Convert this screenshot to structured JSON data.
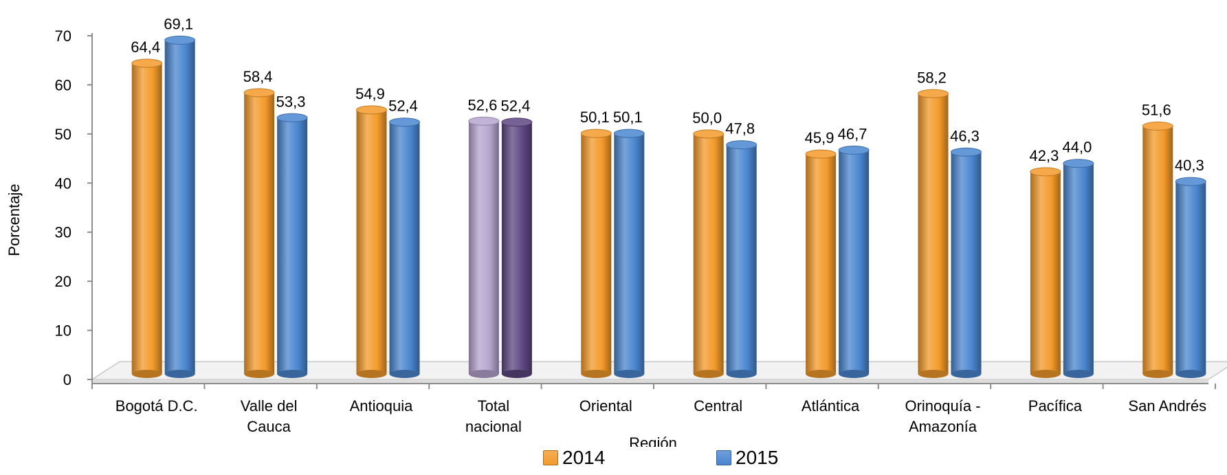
{
  "chart_data": {
    "type": "bar",
    "title": "",
    "xlabel": "Región",
    "ylabel": "Porcentaje",
    "ylim": [
      0,
      70
    ],
    "yticks": [
      "0",
      "10",
      "20",
      "30",
      "40",
      "50",
      "60",
      "70"
    ],
    "categories": [
      [
        "Bogotá D.C."
      ],
      [
        "Valle del",
        "Cauca"
      ],
      [
        "Antioquia"
      ],
      [
        "Total",
        "nacional"
      ],
      [
        "Oriental"
      ],
      [
        "Central"
      ],
      [
        "Atlántica"
      ],
      [
        "Orinoquía -",
        "Amazonía"
      ],
      [
        "Pacífica"
      ],
      [
        "San Andrés"
      ]
    ],
    "series": [
      {
        "name": "2014",
        "color": "#f39a2a",
        "values": [
          64.4,
          58.4,
          54.9,
          52.6,
          50.1,
          50.0,
          45.9,
          58.2,
          42.3,
          51.6
        ],
        "labels": [
          "64,4",
          "58,4",
          "54,9",
          "52,6",
          "50,1",
          "50,0",
          "45,9",
          "58,2",
          "42,3",
          "51,6"
        ]
      },
      {
        "name": "2015",
        "color": "#4a86cf",
        "values": [
          69.1,
          53.3,
          52.4,
          52.4,
          50.1,
          47.8,
          46.7,
          46.3,
          44.0,
          40.3
        ],
        "labels": [
          "69,1",
          "53,3",
          "52,4",
          "52,4",
          "50,1",
          "47,8",
          "46,7",
          "46,3",
          "44,0",
          "40,3"
        ]
      }
    ],
    "highlight": {
      "category_index": 3,
      "colors": [
        "#b6a4cf",
        "#5e4681"
      ]
    },
    "grid": false,
    "legend_position": "bottom"
  }
}
